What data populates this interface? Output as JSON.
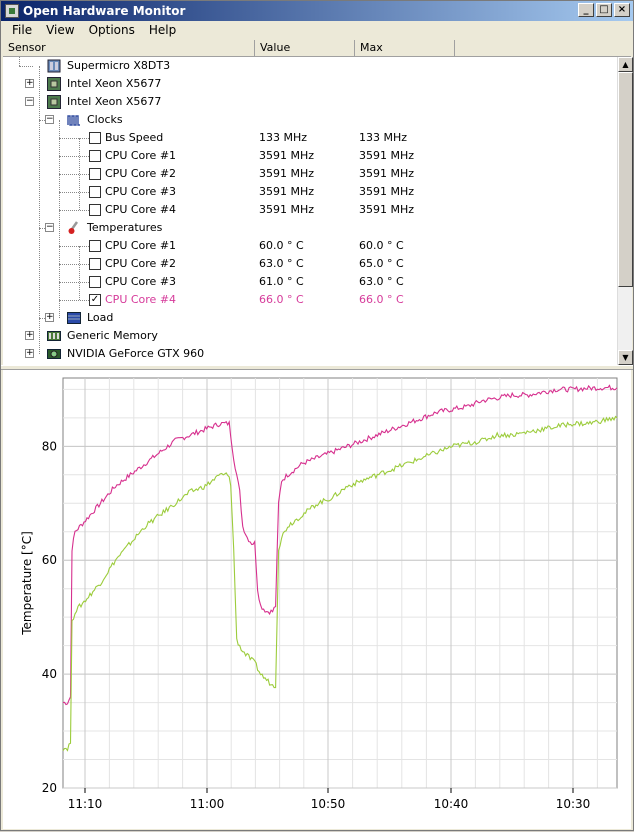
{
  "window": {
    "title": "Open Hardware Monitor",
    "buttons": [
      "_",
      "□",
      "×"
    ]
  },
  "menu": [
    "File",
    "View",
    "Options",
    "Help"
  ],
  "columns": [
    "Sensor",
    "Value",
    "Max"
  ],
  "tree": [
    {
      "label": "Supermicro X8DT3",
      "level": 0,
      "icon": "motherboard-icon",
      "expander": "",
      "checkbox": ""
    },
    {
      "label": "Intel Xeon X5677",
      "level": 0,
      "icon": "cpu-icon",
      "expander": "+",
      "checkbox": ""
    },
    {
      "label": "Intel Xeon X5677",
      "level": 0,
      "icon": "cpu-icon",
      "expander": "−",
      "checkbox": ""
    },
    {
      "label": "Clocks",
      "level": 1,
      "icon": "clock-icon",
      "expander": "−",
      "checkbox": ""
    },
    {
      "label": "Bus Speed",
      "level": 2,
      "value": "133 MHz",
      "max": "133 MHz",
      "checkbox": "unchecked"
    },
    {
      "label": "CPU Core #1",
      "level": 2,
      "value": "3591 MHz",
      "max": "3591 MHz",
      "checkbox": "unchecked"
    },
    {
      "label": "CPU Core #2",
      "level": 2,
      "value": "3591 MHz",
      "max": "3591 MHz",
      "checkbox": "unchecked"
    },
    {
      "label": "CPU Core #3",
      "level": 2,
      "value": "3591 MHz",
      "max": "3591 MHz",
      "checkbox": "unchecked"
    },
    {
      "label": "CPU Core #4",
      "level": 2,
      "value": "3591 MHz",
      "max": "3591 MHz",
      "checkbox": "unchecked"
    },
    {
      "label": "Temperatures",
      "level": 1,
      "icon": "thermometer-icon",
      "expander": "−",
      "checkbox": ""
    },
    {
      "label": "CPU Core #1",
      "level": 2,
      "value": "60.0 ° C",
      "max": "60.0 ° C",
      "checkbox": "unchecked"
    },
    {
      "label": "CPU Core #2",
      "level": 2,
      "value": "63.0 ° C",
      "max": "65.0 ° C",
      "checkbox": "unchecked"
    },
    {
      "label": "CPU Core #3",
      "level": 2,
      "value": "61.0 ° C",
      "max": "63.0 ° C",
      "checkbox": "unchecked"
    },
    {
      "label": "CPU Core #4",
      "level": 2,
      "value": "66.0 ° C",
      "max": "66.0 ° C",
      "checkbox": "checked",
      "highlight": "#d63a9a"
    },
    {
      "label": "Load",
      "level": 1,
      "icon": "load-icon",
      "expander": "+",
      "checkbox": ""
    },
    {
      "label": "Generic Memory",
      "level": 0,
      "icon": "memory-icon",
      "expander": "+",
      "checkbox": ""
    },
    {
      "label": "NVIDIA GeForce GTX 960",
      "level": 0,
      "icon": "gpu-icon",
      "expander": "+",
      "checkbox": ""
    }
  ],
  "chart_data": {
    "type": "line",
    "ylabel": "Temperature [°C]",
    "xlabel": "",
    "ylim": [
      20,
      92
    ],
    "yticks": [
      20,
      40,
      60,
      80
    ],
    "xticks": [
      "11:10",
      "11:00",
      "10:50",
      "10:40",
      "10:30"
    ],
    "grid": true,
    "legend": "none",
    "series": [
      {
        "color": "#d6308e",
        "points": [
          [
            0,
            35
          ],
          [
            3,
            35
          ],
          [
            5,
            36
          ],
          [
            6,
            62
          ],
          [
            8,
            65
          ],
          [
            15,
            67
          ],
          [
            25,
            70
          ],
          [
            35,
            73
          ],
          [
            45,
            75
          ],
          [
            55,
            77
          ],
          [
            65,
            79
          ],
          [
            75,
            81
          ],
          [
            85,
            82
          ],
          [
            95,
            83
          ],
          [
            105,
            84
          ],
          [
            111,
            84
          ],
          [
            112,
            82
          ],
          [
            114,
            78
          ],
          [
            118,
            72
          ],
          [
            120,
            66
          ],
          [
            123,
            64
          ],
          [
            126,
            63
          ],
          [
            128,
            63
          ],
          [
            130,
            55
          ],
          [
            132,
            52
          ],
          [
            136,
            51
          ],
          [
            140,
            51
          ],
          [
            142,
            52
          ],
          [
            144,
            70
          ],
          [
            146,
            74
          ],
          [
            150,
            75
          ],
          [
            160,
            77
          ],
          [
            170,
            78
          ],
          [
            180,
            79
          ],
          [
            190,
            80
          ],
          [
            200,
            81
          ],
          [
            210,
            82
          ],
          [
            220,
            83
          ],
          [
            230,
            84
          ],
          [
            240,
            85
          ],
          [
            250,
            86
          ],
          [
            260,
            86.5
          ],
          [
            270,
            87
          ],
          [
            280,
            88
          ],
          [
            290,
            88.5
          ],
          [
            300,
            89
          ],
          [
            310,
            89
          ],
          [
            320,
            89.5
          ],
          [
            330,
            90
          ],
          [
            340,
            90
          ],
          [
            350,
            90.2
          ],
          [
            360,
            90.3
          ],
          [
            370,
            90.3
          ]
        ]
      },
      {
        "color": "#9ccc3c",
        "points": [
          [
            0,
            27
          ],
          [
            3,
            27
          ],
          [
            5,
            28
          ],
          [
            6,
            49
          ],
          [
            8,
            51
          ],
          [
            15,
            53
          ],
          [
            25,
            56
          ],
          [
            35,
            60
          ],
          [
            45,
            63
          ],
          [
            55,
            66
          ],
          [
            65,
            68
          ],
          [
            75,
            70
          ],
          [
            85,
            72
          ],
          [
            95,
            73
          ],
          [
            105,
            75
          ],
          [
            111,
            75
          ],
          [
            112,
            73
          ],
          [
            114,
            62
          ],
          [
            116,
            46
          ],
          [
            120,
            44
          ],
          [
            124,
            43
          ],
          [
            128,
            42
          ],
          [
            132,
            40
          ],
          [
            136,
            39
          ],
          [
            140,
            38
          ],
          [
            142,
            38
          ],
          [
            144,
            62
          ],
          [
            146,
            64
          ],
          [
            150,
            66
          ],
          [
            160,
            68
          ],
          [
            170,
            70
          ],
          [
            180,
            71
          ],
          [
            190,
            73
          ],
          [
            200,
            74
          ],
          [
            210,
            75
          ],
          [
            220,
            76
          ],
          [
            230,
            77
          ],
          [
            240,
            78
          ],
          [
            250,
            79
          ],
          [
            260,
            80
          ],
          [
            270,
            80.5
          ],
          [
            280,
            81
          ],
          [
            290,
            82
          ],
          [
            300,
            82
          ],
          [
            310,
            82.5
          ],
          [
            320,
            83
          ],
          [
            330,
            83.5
          ],
          [
            340,
            84
          ],
          [
            350,
            84
          ],
          [
            360,
            84.5
          ],
          [
            370,
            85
          ]
        ]
      }
    ]
  }
}
